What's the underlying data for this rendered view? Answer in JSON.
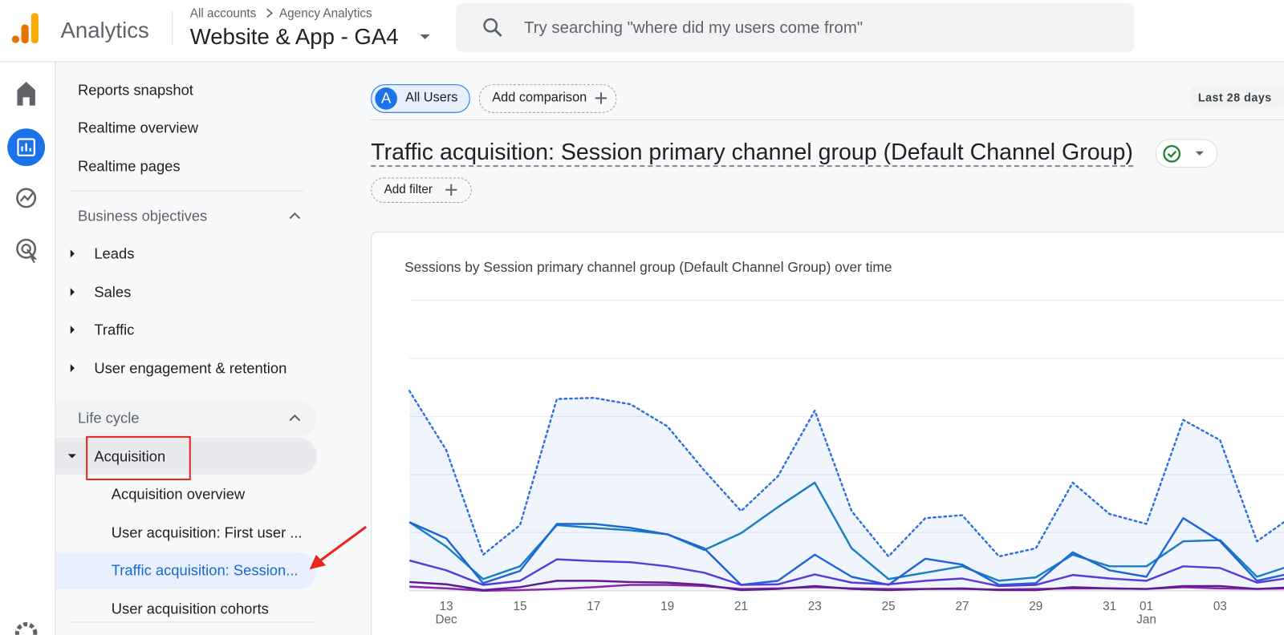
{
  "header": {
    "app_name": "Analytics",
    "breadcrumb": [
      "All accounts",
      "Agency Analytics"
    ],
    "property": "Website & App - GA4",
    "search_placeholder": "Try searching \"where did my users come from\""
  },
  "sidebar": {
    "top_items": [
      "Reports snapshot",
      "Realtime overview",
      "Realtime pages"
    ],
    "sections": [
      {
        "title": "Business objectives",
        "items": [
          "Leads",
          "Sales",
          "Traffic",
          "User engagement & retention"
        ]
      },
      {
        "title": "Life cycle",
        "items": [
          {
            "label": "Acquisition",
            "children": [
              "Acquisition overview",
              "User acquisition: First user ...",
              "Traffic acquisition: Session...",
              "User acquisition cohorts"
            ]
          }
        ]
      }
    ]
  },
  "toolbar": {
    "segment_badge": "A",
    "segment": "All Users",
    "add_comparison": "Add comparison",
    "date_range": "Last 28 days"
  },
  "report": {
    "title": "Traffic acquisition: Session primary channel group (Default Channel Group)",
    "add_filter": "Add filter"
  },
  "chart_data": {
    "type": "line",
    "title": "Sessions by Session primary channel group (Default Channel Group) over time",
    "categories": [
      null,
      "13",
      null,
      "15",
      null,
      "17",
      null,
      "19",
      null,
      "21",
      null,
      "23",
      null,
      "25",
      null,
      "27",
      null,
      "29",
      null,
      "31",
      "01",
      null,
      "03",
      null,
      null
    ],
    "x_sublabels": [
      null,
      "Dec",
      null,
      null,
      null,
      null,
      null,
      null,
      null,
      null,
      null,
      null,
      null,
      null,
      null,
      null,
      null,
      null,
      null,
      null,
      "Jan",
      null,
      null,
      null,
      null
    ],
    "ylim": [
      0,
      5
    ],
    "gridlines": [
      1,
      2,
      3,
      4,
      5
    ],
    "series": [
      {
        "color": "#2f6fe0",
        "style": "dotted",
        "area": true,
        "values": [
          3.44,
          2.42,
          0.62,
          1.13,
          3.3,
          3.32,
          3.21,
          2.83,
          2.07,
          1.37,
          1.97,
          3.1,
          1.37,
          0.59,
          1.25,
          1.3,
          0.59,
          0.73,
          1.86,
          1.32,
          1.15,
          2.94,
          2.59,
          0.85,
          1.3
        ]
      },
      {
        "color": "#1a7fc0",
        "values": [
          1.18,
          0.76,
          0.2,
          0.42,
          1.13,
          1.08,
          1.04,
          0.97,
          0.7,
          0.99,
          1.44,
          1.86,
          0.73,
          0.2,
          0.31,
          0.42,
          0.17,
          0.23,
          0.62,
          0.42,
          0.42,
          0.85,
          0.87,
          0.24,
          0.45
        ]
      },
      {
        "color": "#1e66d6",
        "values": [
          1.18,
          0.9,
          0.13,
          0.34,
          1.15,
          1.15,
          1.08,
          0.97,
          0.73,
          0.1,
          0.17,
          0.62,
          0.24,
          0.1,
          0.55,
          0.45,
          0.1,
          0.13,
          0.66,
          0.35,
          0.24,
          1.25,
          0.85,
          0.17,
          0.31
        ]
      },
      {
        "color": "#5b3bd8",
        "values": [
          0.52,
          0.35,
          0.1,
          0.17,
          0.54,
          0.51,
          0.49,
          0.42,
          0.31,
          0.1,
          0.11,
          0.28,
          0.14,
          0.11,
          0.17,
          0.21,
          0.08,
          0.1,
          0.27,
          0.21,
          0.17,
          0.42,
          0.39,
          0.14,
          0.23
        ]
      },
      {
        "color": "#8e24aa",
        "values": [
          0.07,
          0.04,
          0.0,
          0.01,
          0.03,
          0.06,
          0.1,
          0.1,
          0.08,
          0.03,
          0.04,
          0.06,
          0.04,
          0.03,
          0.03,
          0.03,
          0.02,
          0.03,
          0.04,
          0.04,
          0.03,
          0.06,
          0.04,
          0.03,
          0.04
        ]
      },
      {
        "color": "#5e1c8c",
        "values": [
          0.15,
          0.11,
          0.01,
          0.06,
          0.17,
          0.17,
          0.15,
          0.14,
          0.1,
          0.01,
          0.03,
          0.08,
          0.03,
          0.01,
          0.03,
          0.04,
          0.01,
          0.01,
          0.06,
          0.04,
          0.03,
          0.08,
          0.08,
          0.03,
          0.06
        ]
      }
    ]
  }
}
